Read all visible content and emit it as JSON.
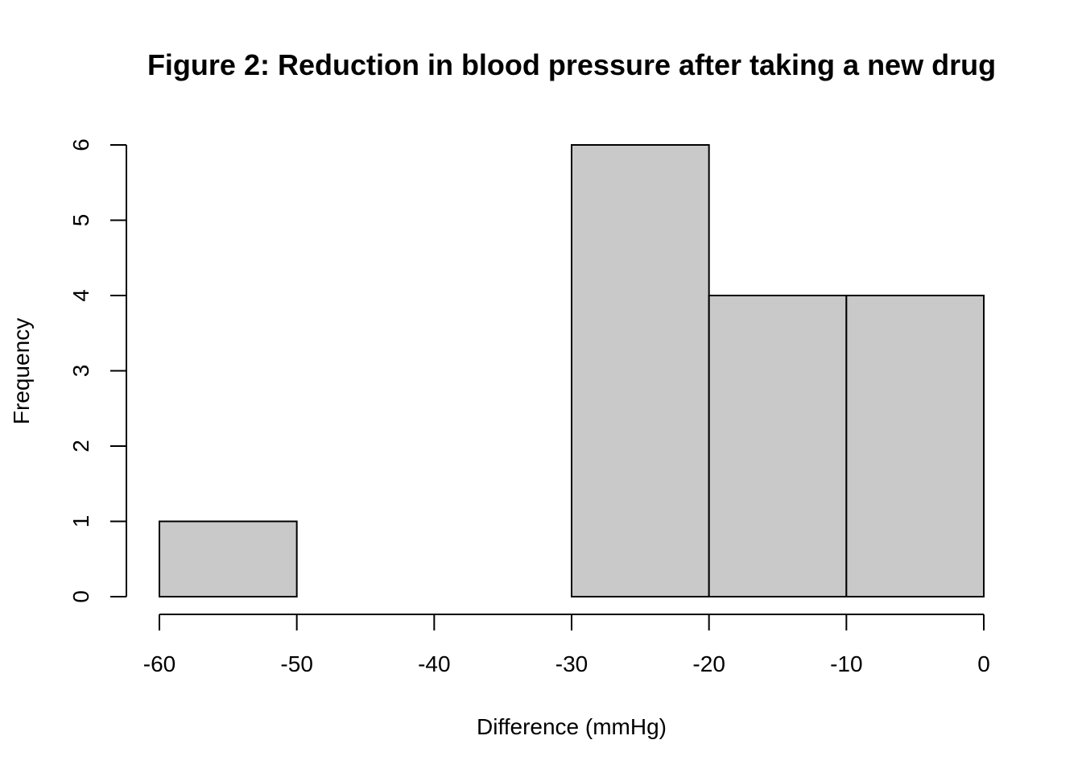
{
  "chart_data": {
    "type": "bar",
    "histogram": true,
    "title": "Figure 2: Reduction in blood pressure after taking a new drug",
    "xlabel": "Difference (mmHg)",
    "ylabel": "Frequency",
    "bins": [
      {
        "start": -60,
        "end": -50,
        "count": 1
      },
      {
        "start": -50,
        "end": -40,
        "count": 0
      },
      {
        "start": -40,
        "end": -30,
        "count": 0
      },
      {
        "start": -30,
        "end": -20,
        "count": 6
      },
      {
        "start": -20,
        "end": -10,
        "count": 4
      },
      {
        "start": -10,
        "end": 0,
        "count": 4
      }
    ],
    "xlim": [
      -60,
      0
    ],
    "ylim": [
      0,
      6
    ],
    "x_ticks": [
      -60,
      -50,
      -40,
      -30,
      -20,
      -10,
      0
    ],
    "y_ticks": [
      0,
      1,
      2,
      3,
      4,
      5,
      6
    ],
    "grid": false,
    "bar_fill": "#c9c9c9",
    "bar_stroke": "#000000"
  }
}
